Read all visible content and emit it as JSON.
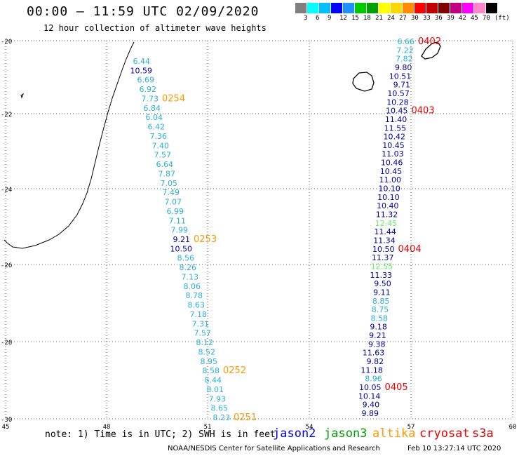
{
  "header": {
    "title": "00:00 – 11:59 UTC 02/09/2020",
    "subtitle": "12 hour collection of altimeter wave heights"
  },
  "scale": {
    "colors": [
      "#808080",
      "#00ffff",
      "#00bfff",
      "#0000ff",
      "#1e90ff",
      "#00c800",
      "#00a000",
      "#ffff00",
      "#ffd700",
      "#ff8c00",
      "#ff0000",
      "#c00000",
      "#800000",
      "#c00080",
      "#ff00ff",
      "#ff88cc",
      "#000000"
    ],
    "labels": [
      "3",
      "6",
      "9",
      "12",
      "15",
      "18",
      "21",
      "24",
      "27",
      "30",
      "33",
      "36",
      "39",
      "42",
      "45",
      "70",
      "(ft)"
    ]
  },
  "axes": {
    "lat_labels": [
      "-20",
      "-22",
      "-24",
      "-26",
      "-28",
      "-30"
    ],
    "lon_labels": [
      "45",
      "48",
      "51",
      "54",
      "57",
      "60"
    ]
  },
  "colors": {
    "light": "#2ab0d8",
    "dark": "#00009c",
    "green": "#66ee66",
    "orange": "#ff9900",
    "red": "#ee0000"
  },
  "track_west": {
    "values": [
      {
        "v": "6.44",
        "c": "light"
      },
      {
        "v": "10.59",
        "c": "dark"
      },
      {
        "v": "6.69",
        "c": "light"
      },
      {
        "v": "6.92",
        "c": "light"
      },
      {
        "v": "7.73",
        "c": "light"
      },
      {
        "v": "6.84",
        "c": "light"
      },
      {
        "v": "6.04",
        "c": "light"
      },
      {
        "v": "6.42",
        "c": "light"
      },
      {
        "v": "7.36",
        "c": "light"
      },
      {
        "v": "7.40",
        "c": "light"
      },
      {
        "v": "7.57",
        "c": "light"
      },
      {
        "v": "6.64",
        "c": "light"
      },
      {
        "v": "7.87",
        "c": "light"
      },
      {
        "v": "7.05",
        "c": "light"
      },
      {
        "v": "7.49",
        "c": "light"
      },
      {
        "v": "7.07",
        "c": "light"
      },
      {
        "v": "6.99",
        "c": "light"
      },
      {
        "v": "7.11",
        "c": "light"
      },
      {
        "v": "7.99",
        "c": "light"
      },
      {
        "v": "9.21",
        "c": "dark"
      },
      {
        "v": "10.50",
        "c": "dark"
      },
      {
        "v": "8.56",
        "c": "light"
      },
      {
        "v": "8.26",
        "c": "light"
      },
      {
        "v": "7.13",
        "c": "light"
      },
      {
        "v": "8.06",
        "c": "light"
      },
      {
        "v": "8.78",
        "c": "light"
      },
      {
        "v": "8.63",
        "c": "light"
      },
      {
        "v": "7.18",
        "c": "light"
      },
      {
        "v": "7.31",
        "c": "light"
      },
      {
        "v": "7.57",
        "c": "light"
      },
      {
        "v": "8.12",
        "c": "light"
      },
      {
        "v": "8.52",
        "c": "light"
      },
      {
        "v": "8.95",
        "c": "light"
      },
      {
        "v": "8.58",
        "c": "light"
      },
      {
        "v": "8.44",
        "c": "light"
      },
      {
        "v": "8.01",
        "c": "light"
      },
      {
        "v": "7.93",
        "c": "light"
      },
      {
        "v": "8.65",
        "c": "light"
      },
      {
        "v": "8.23",
        "c": "light"
      }
    ],
    "times": [
      {
        "t": "0254",
        "idx": 4,
        "c": "orange"
      },
      {
        "t": "0253",
        "idx": 19,
        "c": "orange"
      },
      {
        "t": "0252",
        "idx": 33,
        "c": "orange"
      },
      {
        "t": "0251",
        "idx": 38,
        "c": "orange"
      }
    ]
  },
  "track_east": {
    "values": [
      {
        "v": "6.66",
        "c": "light"
      },
      {
        "v": "7.22",
        "c": "light"
      },
      {
        "v": "7.82",
        "c": "light"
      },
      {
        "v": "9.80",
        "c": "dark"
      },
      {
        "v": "10.51",
        "c": "dark"
      },
      {
        "v": "9.71",
        "c": "dark"
      },
      {
        "v": "10.57",
        "c": "dark"
      },
      {
        "v": "10.28",
        "c": "dark"
      },
      {
        "v": "10.45",
        "c": "dark"
      },
      {
        "v": "11.40",
        "c": "dark"
      },
      {
        "v": "11.55",
        "c": "dark"
      },
      {
        "v": "10.42",
        "c": "dark"
      },
      {
        "v": "10.45",
        "c": "dark"
      },
      {
        "v": "11.03",
        "c": "dark"
      },
      {
        "v": "10.46",
        "c": "dark"
      },
      {
        "v": "10.45",
        "c": "dark"
      },
      {
        "v": "11.00",
        "c": "dark"
      },
      {
        "v": "10.10",
        "c": "dark"
      },
      {
        "v": "10.10",
        "c": "dark"
      },
      {
        "v": "10.40",
        "c": "dark"
      },
      {
        "v": "11.32",
        "c": "dark"
      },
      {
        "v": "12.45",
        "c": "green"
      },
      {
        "v": "11.44",
        "c": "dark"
      },
      {
        "v": "11.34",
        "c": "dark"
      },
      {
        "v": "10.50",
        "c": "dark"
      },
      {
        "v": "11.37",
        "c": "dark"
      },
      {
        "v": "12.55",
        "c": "green"
      },
      {
        "v": "11.33",
        "c": "dark"
      },
      {
        "v": "9.50",
        "c": "dark"
      },
      {
        "v": "9.11",
        "c": "dark"
      },
      {
        "v": "8.85",
        "c": "light"
      },
      {
        "v": "8.75",
        "c": "light"
      },
      {
        "v": "8.58",
        "c": "light"
      },
      {
        "v": "9.18",
        "c": "dark"
      },
      {
        "v": "9.21",
        "c": "dark"
      },
      {
        "v": "9.38",
        "c": "dark"
      },
      {
        "v": "11.63",
        "c": "dark"
      },
      {
        "v": "9.82",
        "c": "dark"
      },
      {
        "v": "11.18",
        "c": "dark"
      },
      {
        "v": "8.96",
        "c": "light"
      },
      {
        "v": "10.05",
        "c": "dark"
      },
      {
        "v": "10.14",
        "c": "dark"
      },
      {
        "v": "9.40",
        "c": "dark"
      },
      {
        "v": "9.89",
        "c": "dark"
      }
    ],
    "times": [
      {
        "t": "0402",
        "idx": 0,
        "c": "red"
      },
      {
        "t": "0403",
        "idx": 8,
        "c": "red"
      },
      {
        "t": "0404",
        "idx": 24,
        "c": "red"
      },
      {
        "t": "0405",
        "idx": 40,
        "c": "red"
      }
    ]
  },
  "footer": {
    "note": "note: 1) Time is in UTC; 2) SWH is in feet",
    "legend": [
      {
        "name": "jason2",
        "color": "#0000ff"
      },
      {
        "name": "jason3",
        "color": "#00a000"
      },
      {
        "name": "altika",
        "color": "#ff9900"
      },
      {
        "name": "cryosat",
        "color": "#ee0000"
      },
      {
        "name": "s3a",
        "color": "#cc0000"
      }
    ],
    "credit": "NOAA/NESDIS Center for Satellite Applications and Research",
    "timestamp": "Feb 10 13:27:14 UTC 2020"
  }
}
